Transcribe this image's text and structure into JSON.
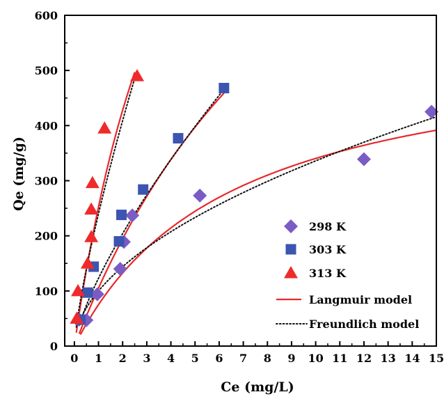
{
  "chart_data": {
    "type": "scatter",
    "title": "",
    "xlabel": "Ce (mg/L)",
    "ylabel": "Qe (mg/g)",
    "xlim": [
      -0.4,
      15
    ],
    "ylim": [
      0,
      600
    ],
    "xticks": [
      0,
      1,
      2,
      3,
      4,
      5,
      6,
      7,
      8,
      9,
      10,
      11,
      12,
      13,
      14,
      15
    ],
    "yticks": [
      0,
      100,
      200,
      300,
      400,
      500,
      600
    ],
    "grid": false,
    "legend_position": "center-right",
    "series": [
      {
        "name": "298 K",
        "marker": "diamond",
        "color": "#7B5CC4",
        "x": [
          0.2,
          0.5,
          0.95,
          1.9,
          2.05,
          2.4,
          5.2,
          12.0,
          14.8
        ],
        "y": [
          48,
          47,
          94,
          140,
          189,
          237,
          273,
          339,
          425
        ]
      },
      {
        "name": "303 K",
        "marker": "square",
        "color": "#3B55B0",
        "x": [
          0.25,
          0.55,
          0.8,
          1.85,
          1.95,
          2.85,
          4.3,
          6.2
        ],
        "y": [
          48,
          97,
          144,
          190,
          238,
          284,
          377,
          468
        ]
      },
      {
        "name": "313 K",
        "marker": "triangle",
        "color": "#F02A2A",
        "x": [
          0.1,
          0.15,
          0.55,
          0.7,
          0.7,
          0.75,
          1.25,
          2.6
        ],
        "y": [
          50,
          100,
          150,
          198,
          248,
          296,
          395,
          490
        ]
      }
    ],
    "model_curves": [
      {
        "name": "Langmuir model",
        "style": "solid",
        "color": "#E8282B",
        "fits": [
          {
            "for": "298 K",
            "x_range": [
              0.25,
              15
            ],
            "qmax": 560,
            "kl": 0.155
          },
          {
            "for": "303 K",
            "x_range": [
              0.2,
              6.2
            ],
            "qmax": 1300,
            "kl": 0.088
          },
          {
            "for": "313 K",
            "x_range": [
              0.08,
              2.5
            ],
            "qmax": 1400,
            "kl": 0.22
          }
        ]
      },
      {
        "name": "Freundlich model",
        "style": "dotted",
        "color": "#111111",
        "fits": [
          {
            "for": "298 K",
            "x_range": [
              0.25,
              15
            ],
            "kf": 100,
            "n": 1.9
          },
          {
            "for": "303 K",
            "x_range": [
              0.2,
              6.2
            ],
            "kf": 123,
            "n": 1.37
          },
          {
            "for": "313 K",
            "x_range": [
              0.08,
              2.55
            ],
            "kf": 240,
            "n": 1.3
          }
        ]
      }
    ]
  }
}
